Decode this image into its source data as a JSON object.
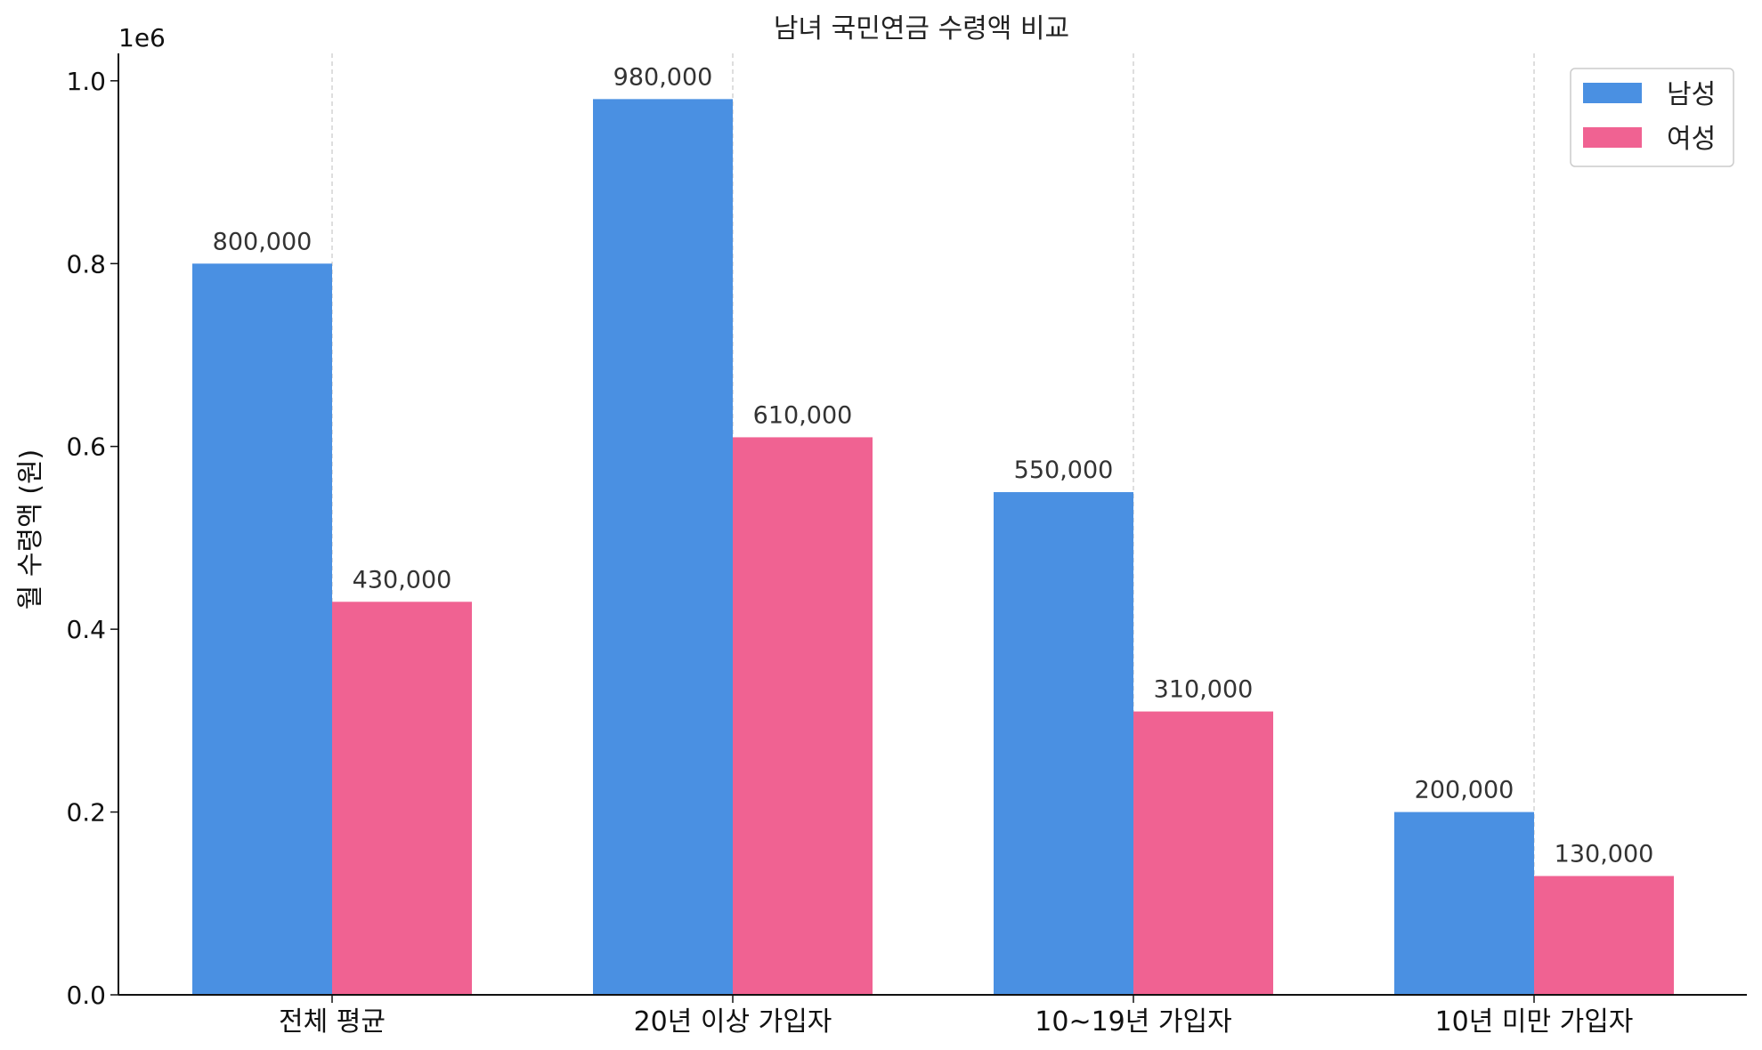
{
  "chart_data": {
    "type": "bar",
    "title": "남녀 국민연금 수령액 비교",
    "xlabel": "",
    "ylabel": "월 수령액 (원)",
    "y_offset_label": "1e6",
    "categories": [
      "전체 평균",
      "20년 이상 가입자",
      "10~19년 가입자",
      "10년 미만 가입자"
    ],
    "series": [
      {
        "name": "남성",
        "color": "#4A90E2",
        "values": [
          800000,
          980000,
          550000,
          200000
        ],
        "labels": [
          "800,000",
          "980,000",
          "550,000",
          "200,000"
        ]
      },
      {
        "name": "여성",
        "color": "#F06292",
        "values": [
          430000,
          610000,
          310000,
          130000
        ],
        "labels": [
          "430,000",
          "610,000",
          "310,000",
          "130,000"
        ]
      }
    ],
    "ylim": [
      0,
      1030000
    ],
    "yticks": [
      0,
      0.2,
      0.4,
      0.6,
      0.8,
      1.0
    ],
    "ytick_labels": [
      "0.0",
      "0.2",
      "0.4",
      "0.6",
      "0.8",
      "1.0"
    ],
    "grid": "vertical dashed",
    "legend_position": "top-right"
  }
}
